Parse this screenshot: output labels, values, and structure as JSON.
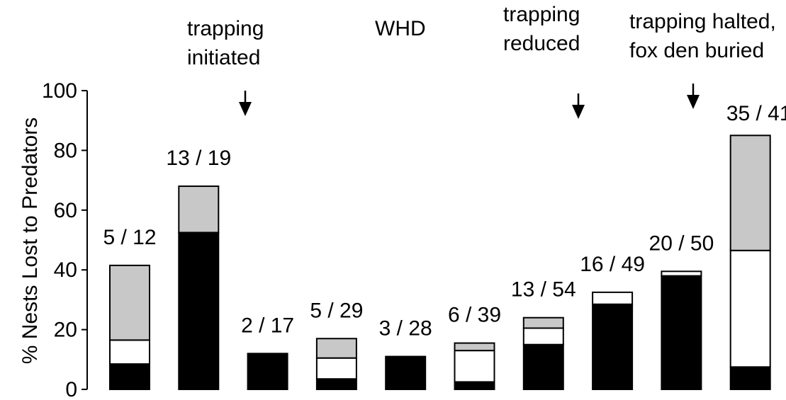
{
  "chart_data": {
    "type": "bar",
    "stacked": true,
    "ylabel": "% Nests Lost to Predators",
    "ylim": [
      0,
      100
    ],
    "yticks": [
      0,
      20,
      40,
      60,
      80,
      100
    ],
    "grid": false,
    "series_colors": [
      "#000000",
      "#ffffff",
      "#c8c8c8"
    ],
    "bars": [
      {
        "label": "5 / 12",
        "segments": [
          8.5,
          8,
          25
        ]
      },
      {
        "label": "13 / 19",
        "segments": [
          52.5,
          0,
          15.5
        ]
      },
      {
        "label": "2 / 17",
        "segments": [
          12,
          0,
          0
        ]
      },
      {
        "label": "5 / 29",
        "segments": [
          3.5,
          7,
          6.5
        ]
      },
      {
        "label": "3 / 28",
        "segments": [
          11,
          0,
          0
        ]
      },
      {
        "label": "6 / 39",
        "segments": [
          2.5,
          10.5,
          2.5
        ]
      },
      {
        "label": "13 / 54",
        "segments": [
          15,
          5.5,
          3.5
        ]
      },
      {
        "label": "16 / 49",
        "segments": [
          28.5,
          4,
          0
        ]
      },
      {
        "label": "20 / 50",
        "segments": [
          38,
          1.5,
          0
        ]
      },
      {
        "label": "35 / 41",
        "segments": [
          7.5,
          39,
          38.5
        ]
      }
    ],
    "annotations": [
      {
        "lines": [
          "trapping",
          "initiated"
        ],
        "arrow": true
      },
      {
        "lines": [
          "WHD"
        ],
        "arrow": false
      },
      {
        "lines": [
          "trapping",
          "reduced"
        ],
        "arrow": true
      },
      {
        "lines": [
          "trapping halted,",
          "fox den buried"
        ],
        "arrow": true
      }
    ]
  }
}
